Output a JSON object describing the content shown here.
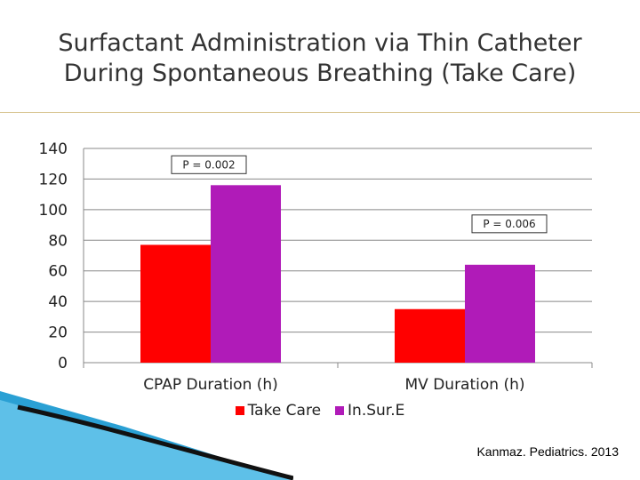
{
  "slide": {
    "title_line1": "Surfactant Administration via Thin Catheter",
    "title_line2": "During Spontaneous Breathing (Take Care)",
    "citation": "Kanmaz. Pediatrics. 2013"
  },
  "colors": {
    "take_care": "#ff0000",
    "insure": "#b01bb8",
    "accent_rule": "#d8c490",
    "deco_blue": "#2aa0d4"
  },
  "chart_data": {
    "type": "bar",
    "categories": [
      "CPAP Duration (h)",
      "MV Duration (h)"
    ],
    "series": [
      {
        "name": "Take Care",
        "values": [
          77,
          35
        ]
      },
      {
        "name": "In.Sur.E",
        "values": [
          116,
          64
        ]
      }
    ],
    "ylim": [
      0,
      140
    ],
    "yticks": [
      "0",
      "20",
      "40",
      "60",
      "80",
      "100",
      "120",
      "140"
    ],
    "grid": true,
    "legend_position": "bottom",
    "annotations": [
      "P = 0.002",
      "P = 0.006"
    ]
  }
}
